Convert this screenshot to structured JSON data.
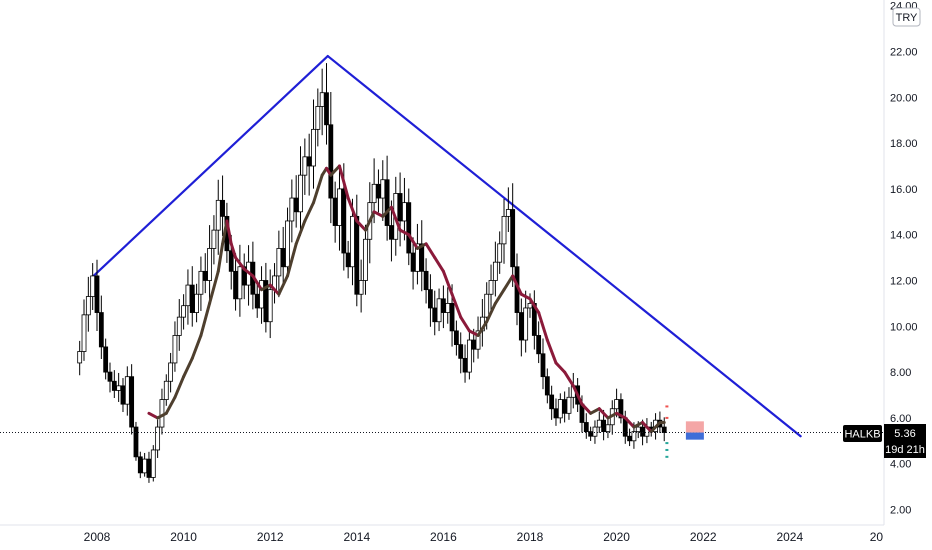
{
  "chart_data": {
    "type": "candlestick",
    "symbol": "HALKB",
    "currency": "TRY",
    "last_price": "5.36",
    "countdown": "19d 21h",
    "y_ticks": [
      "24.00",
      "22.00",
      "20.00",
      "18.00",
      "16.00",
      "14.00",
      "12.00",
      "10.00",
      "8.00",
      "6.00",
      "4.00",
      "2.00"
    ],
    "x_ticks": [
      "2008",
      "2010",
      "2012",
      "2014",
      "2016",
      "2018",
      "2020",
      "2022",
      "2024",
      "20"
    ],
    "ylim": [
      1.5,
      24.2
    ],
    "xlim": [
      2006.75,
      2025.9
    ],
    "colors": {
      "up": "#ffffff",
      "down": "#000000",
      "wick": "#000000",
      "ma_up": "#4e3f2e",
      "ma_down": "#8b1a3a",
      "trendline": "#1f1fd6",
      "price_line": "#131722",
      "forecast_red": "#f4a6a6",
      "forecast_blue": "#3f6ed8",
      "marker_red": "#ef5350",
      "marker_green": "#26a69a"
    },
    "trendlines": [
      {
        "x1": 2007.92,
        "y1": 12.2,
        "x2": 2013.33,
        "y2": 21.8
      },
      {
        "x1": 2013.33,
        "y1": 21.8,
        "x2": 2024.25,
        "y2": 5.2
      }
    ],
    "price_series": [
      [
        2007.5,
        8.4
      ],
      [
        2007.6,
        8.9
      ],
      [
        2007.7,
        10.5
      ],
      [
        2007.8,
        11.3
      ],
      [
        2007.9,
        12.2
      ],
      [
        2008.0,
        10.6
      ],
      [
        2008.1,
        9.1
      ],
      [
        2008.2,
        8.0
      ],
      [
        2008.3,
        7.6
      ],
      [
        2008.4,
        7.2
      ],
      [
        2008.5,
        7.4
      ],
      [
        2008.6,
        6.6
      ],
      [
        2008.7,
        7.8
      ],
      [
        2008.8,
        5.6
      ],
      [
        2008.9,
        4.3
      ],
      [
        2009.0,
        3.6
      ],
      [
        2009.1,
        4.2
      ],
      [
        2009.2,
        3.4
      ],
      [
        2009.3,
        4.6
      ],
      [
        2009.4,
        5.6
      ],
      [
        2009.5,
        6.8
      ],
      [
        2009.6,
        7.6
      ],
      [
        2009.7,
        8.4
      ],
      [
        2009.8,
        9.6
      ],
      [
        2009.9,
        10.4
      ],
      [
        2010.0,
        10.9
      ],
      [
        2010.1,
        11.8
      ],
      [
        2010.2,
        10.6
      ],
      [
        2010.3,
        11.4
      ],
      [
        2010.4,
        12.4
      ],
      [
        2010.5,
        12.0
      ],
      [
        2010.6,
        13.4
      ],
      [
        2010.7,
        14.2
      ],
      [
        2010.8,
        15.5
      ],
      [
        2010.9,
        14.8
      ],
      [
        2011.0,
        13.3
      ],
      [
        2011.1,
        12.4
      ],
      [
        2011.2,
        11.2
      ],
      [
        2011.3,
        12.6
      ],
      [
        2011.4,
        11.8
      ],
      [
        2011.5,
        12.8
      ],
      [
        2011.6,
        11.4
      ],
      [
        2011.7,
        10.8
      ],
      [
        2011.8,
        12.0
      ],
      [
        2011.9,
        10.2
      ],
      [
        2012.0,
        11.6
      ],
      [
        2012.1,
        12.2
      ],
      [
        2012.2,
        13.4
      ],
      [
        2012.3,
        12.6
      ],
      [
        2012.4,
        14.6
      ],
      [
        2012.5,
        15.6
      ],
      [
        2012.6,
        15.0
      ],
      [
        2012.7,
        16.6
      ],
      [
        2012.8,
        17.4
      ],
      [
        2012.9,
        17.0
      ],
      [
        2013.0,
        18.6
      ],
      [
        2013.1,
        19.6
      ],
      [
        2013.2,
        20.2
      ],
      [
        2013.3,
        18.8
      ],
      [
        2013.4,
        15.6
      ],
      [
        2013.5,
        14.4
      ],
      [
        2013.6,
        16.0
      ],
      [
        2013.7,
        13.2
      ],
      [
        2013.8,
        12.6
      ],
      [
        2013.9,
        14.8
      ],
      [
        2014.0,
        11.4
      ],
      [
        2014.1,
        12.0
      ],
      [
        2014.2,
        13.8
      ],
      [
        2014.3,
        15.4
      ],
      [
        2014.4,
        16.2
      ],
      [
        2014.5,
        15.6
      ],
      [
        2014.6,
        16.4
      ],
      [
        2014.7,
        14.4
      ],
      [
        2014.8,
        13.8
      ],
      [
        2014.9,
        15.8
      ],
      [
        2015.0,
        14.6
      ],
      [
        2015.1,
        15.4
      ],
      [
        2015.2,
        13.2
      ],
      [
        2015.3,
        12.4
      ],
      [
        2015.4,
        13.6
      ],
      [
        2015.5,
        12.4
      ],
      [
        2015.6,
        11.6
      ],
      [
        2015.7,
        10.8
      ],
      [
        2015.8,
        10.2
      ],
      [
        2015.9,
        11.2
      ],
      [
        2016.0,
        10.6
      ],
      [
        2016.1,
        11.0
      ],
      [
        2016.2,
        9.8
      ],
      [
        2016.3,
        9.2
      ],
      [
        2016.4,
        8.6
      ],
      [
        2016.5,
        8.0
      ],
      [
        2016.6,
        9.4
      ],
      [
        2016.7,
        9.0
      ],
      [
        2016.8,
        9.8
      ],
      [
        2016.9,
        10.4
      ],
      [
        2017.0,
        11.4
      ],
      [
        2017.1,
        12.0
      ],
      [
        2017.2,
        12.8
      ],
      [
        2017.3,
        13.6
      ],
      [
        2017.4,
        14.8
      ],
      [
        2017.5,
        15.1
      ],
      [
        2017.6,
        12.6
      ],
      [
        2017.7,
        10.6
      ],
      [
        2017.8,
        9.4
      ],
      [
        2017.9,
        10.8
      ],
      [
        2018.0,
        11.0
      ],
      [
        2018.1,
        9.6
      ],
      [
        2018.2,
        8.8
      ],
      [
        2018.3,
        7.8
      ],
      [
        2018.4,
        7.0
      ],
      [
        2018.5,
        6.4
      ],
      [
        2018.6,
        6.0
      ],
      [
        2018.7,
        6.8
      ],
      [
        2018.8,
        6.2
      ],
      [
        2018.9,
        6.9
      ],
      [
        2019.0,
        7.4
      ],
      [
        2019.1,
        6.6
      ],
      [
        2019.2,
        5.8
      ],
      [
        2019.3,
        5.4
      ],
      [
        2019.4,
        5.2
      ],
      [
        2019.5,
        5.6
      ],
      [
        2019.6,
        5.9
      ],
      [
        2019.7,
        5.4
      ],
      [
        2019.8,
        5.7
      ],
      [
        2019.9,
        6.4
      ],
      [
        2020.0,
        6.8
      ],
      [
        2020.1,
        6.0
      ],
      [
        2020.2,
        5.2
      ],
      [
        2020.3,
        5.0
      ],
      [
        2020.4,
        5.4
      ],
      [
        2020.5,
        5.6
      ],
      [
        2020.6,
        5.2
      ],
      [
        2020.7,
        5.6
      ],
      [
        2020.8,
        5.4
      ],
      [
        2020.9,
        5.9
      ],
      [
        2021.0,
        5.6
      ],
      [
        2021.1,
        5.36
      ]
    ],
    "ma_series": [
      [
        2009.2,
        6.2
      ],
      [
        2009.4,
        6.0
      ],
      [
        2009.6,
        6.2
      ],
      [
        2009.8,
        6.9
      ],
      [
        2010.0,
        7.8
      ],
      [
        2010.2,
        8.6
      ],
      [
        2010.4,
        9.6
      ],
      [
        2010.6,
        11.0
      ],
      [
        2010.8,
        12.4
      ],
      [
        2010.9,
        13.6
      ],
      [
        2011.0,
        14.6
      ],
      [
        2011.1,
        13.6
      ],
      [
        2011.2,
        13.0
      ],
      [
        2011.4,
        12.5
      ],
      [
        2011.6,
        12.2
      ],
      [
        2011.8,
        11.6
      ],
      [
        2012.0,
        11.8
      ],
      [
        2012.2,
        11.4
      ],
      [
        2012.4,
        12.2
      ],
      [
        2012.6,
        13.6
      ],
      [
        2012.8,
        14.6
      ],
      [
        2013.0,
        15.4
      ],
      [
        2013.2,
        16.6
      ],
      [
        2013.3,
        16.9
      ],
      [
        2013.4,
        16.6
      ],
      [
        2013.6,
        17.0
      ],
      [
        2013.8,
        15.6
      ],
      [
        2014.0,
        14.6
      ],
      [
        2014.2,
        14.2
      ],
      [
        2014.4,
        15.0
      ],
      [
        2014.6,
        14.8
      ],
      [
        2014.8,
        15.2
      ],
      [
        2015.0,
        14.2
      ],
      [
        2015.2,
        14.0
      ],
      [
        2015.4,
        13.4
      ],
      [
        2015.6,
        13.6
      ],
      [
        2015.8,
        13.0
      ],
      [
        2016.0,
        12.4
      ],
      [
        2016.2,
        11.4
      ],
      [
        2016.4,
        10.4
      ],
      [
        2016.6,
        9.8
      ],
      [
        2016.8,
        9.6
      ],
      [
        2017.0,
        10.2
      ],
      [
        2017.2,
        11.0
      ],
      [
        2017.4,
        11.6
      ],
      [
        2017.6,
        12.2
      ],
      [
        2017.8,
        11.4
      ],
      [
        2018.0,
        11.2
      ],
      [
        2018.2,
        10.6
      ],
      [
        2018.4,
        9.4
      ],
      [
        2018.6,
        8.4
      ],
      [
        2018.8,
        8.0
      ],
      [
        2019.0,
        7.4
      ],
      [
        2019.2,
        6.6
      ],
      [
        2019.4,
        6.2
      ],
      [
        2019.6,
        6.4
      ],
      [
        2019.8,
        6.0
      ],
      [
        2020.0,
        6.2
      ],
      [
        2020.2,
        6.0
      ],
      [
        2020.4,
        5.6
      ],
      [
        2020.6,
        5.8
      ],
      [
        2020.8,
        5.4
      ],
      [
        2021.0,
        5.8
      ],
      [
        2021.1,
        5.8
      ]
    ]
  },
  "icons": [
    "price-tag-icon"
  ]
}
